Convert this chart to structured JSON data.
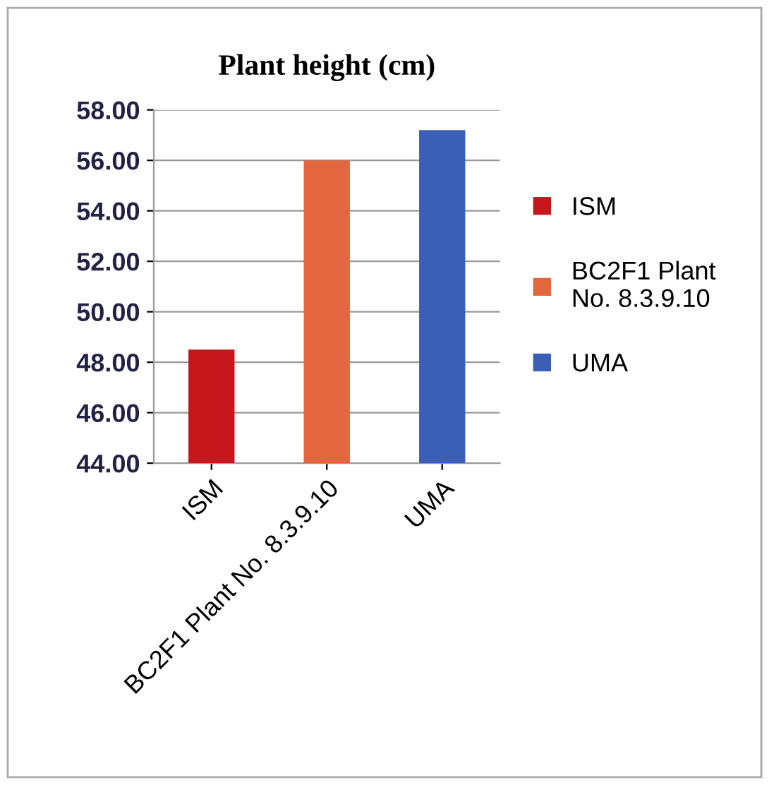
{
  "chart_data": {
    "type": "bar",
    "title": "Plant height (cm)",
    "categories": [
      "ISM",
      "BC2F1 Plant No. 8.3.9.10",
      "UMA"
    ],
    "series": [
      {
        "name": "ISM",
        "color": "#c8161d",
        "values": [
          48.5,
          null,
          null
        ]
      },
      {
        "name": "BC2F1 Plant No. 8.3.9.10",
        "color": "#e2673f",
        "values": [
          null,
          56.0,
          null
        ]
      },
      {
        "name": "UMA",
        "color": "#3a5fb5",
        "values": [
          null,
          null,
          57.2
        ]
      }
    ],
    "ylim": [
      44,
      58
    ],
    "yticks": [
      {
        "value": 44,
        "label": "44.00"
      },
      {
        "value": 46,
        "label": "46.00"
      },
      {
        "value": 48,
        "label": "48.00"
      },
      {
        "value": 50,
        "label": "50.00"
      },
      {
        "value": 52,
        "label": "52.00"
      },
      {
        "value": 54,
        "label": "54.00"
      },
      {
        "value": 56,
        "label": "56.00"
      },
      {
        "value": 58,
        "label": "58.00"
      }
    ],
    "grid": "y",
    "legend": "right"
  }
}
